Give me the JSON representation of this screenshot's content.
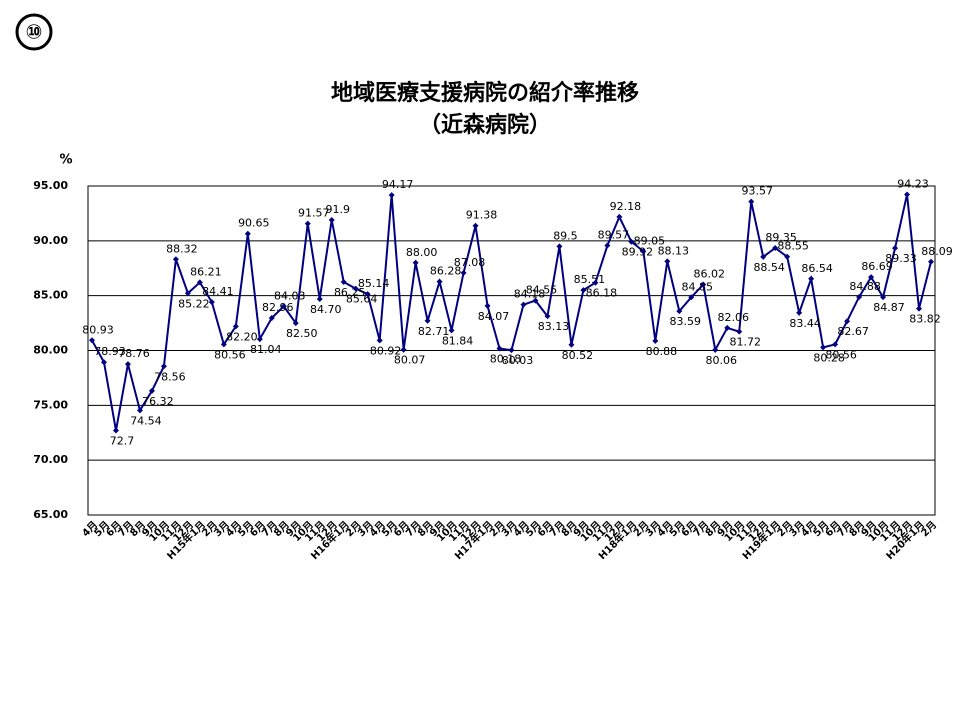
{
  "badge": "⑩",
  "chart_data": {
    "type": "line",
    "title": "地域医療支援病院の紹介率推移",
    "subtitle": "（近森病院）",
    "y_label": "%",
    "categories": [
      "4月",
      "5月",
      "6月",
      "7月",
      "8月",
      "9月",
      "10月",
      "11月",
      "12月",
      "H15年1月",
      "2月",
      "3月",
      "4月",
      "5月",
      "6月",
      "7月",
      "8月",
      "9月",
      "10月",
      "11月",
      "12月",
      "H16年1月",
      "2月",
      "3月",
      "4月",
      "5月",
      "6月",
      "7月",
      "8月",
      "9月",
      "10月",
      "11月",
      "12月",
      "H17年1月",
      "2月",
      "3月",
      "4月",
      "5月",
      "6月",
      "7月",
      "8月",
      "9月",
      "10月",
      "11月",
      "12月",
      "H18年1月",
      "2月",
      "3月",
      "4月",
      "5月",
      "6月",
      "7月",
      "8月",
      "9月",
      "10月",
      "11月",
      "12月",
      "H19年1月",
      "2月",
      "3月",
      "4月",
      "5月",
      "6月",
      "7月",
      "8月",
      "9月",
      "10月",
      "11月",
      "12月",
      "H20年1月",
      "2月"
    ],
    "series": [
      {
        "name": "紹介率",
        "color": "#000080",
        "values": [
          80.93,
          78.93,
          72.7,
          78.76,
          74.54,
          76.32,
          78.56,
          88.32,
          85.22,
          86.21,
          84.41,
          80.56,
          82.2,
          90.65,
          81.04,
          82.96,
          84.03,
          82.5,
          91.57,
          84.7,
          91.9,
          86.25,
          85.64,
          85.14,
          80.92,
          94.17,
          80.07,
          88,
          82.71,
          86.28,
          81.84,
          87.08,
          91.38,
          84.07,
          80.18,
          80.03,
          84.18,
          84.55,
          83.13,
          89.5,
          80.52,
          85.51,
          86.18,
          89.57,
          92.18,
          89.92,
          89.05,
          80.88,
          88.13,
          83.59,
          84.85,
          86.02,
          80.06,
          82.06,
          81.72,
          93.57,
          88.54,
          89.35,
          88.55,
          83.44,
          86.54,
          80.28,
          80.56,
          82.67,
          84.88,
          86.69,
          84.87,
          89.33,
          94.23,
          83.82,
          88.09
        ],
        "value_labels": [
          "80.93",
          "78.93",
          "72.7",
          "78.76",
          "74.54",
          "76.32",
          "78.56",
          "88.32",
          "85.22",
          "86.21",
          "84.41",
          "80.56",
          "82.20",
          "90.65",
          "81.04",
          "82.96",
          "84.03",
          "82.50",
          "91.57",
          "84.70",
          "91.9",
          "86.25",
          "85.64",
          "85.14",
          "80.92",
          "94.17",
          "80.07",
          "88.00",
          "82.71",
          "86.28",
          "81.84",
          "87.08",
          "91.38",
          "84.07",
          "80.18",
          "80.03",
          "84.18",
          "84.55",
          "83.13",
          "89.5",
          "80.52",
          "85.51",
          "86.18",
          "89.57",
          "92.18",
          "89.92",
          "89.05",
          "80.88",
          "88.13",
          "83.59",
          "84.85",
          "86.02",
          "80.06",
          "82.06",
          "81.72",
          "93.57",
          "88.54",
          "89.35",
          "88.55",
          "83.44",
          "86.54",
          "80.28",
          "80.56",
          "82.67",
          "84.88",
          "86.69",
          "84.87",
          "89.33",
          "94.23",
          "83.82",
          "88.09"
        ]
      }
    ],
    "ylim": [
      65,
      95
    ],
    "yticks": [
      {
        "value": 65,
        "label": "65.00"
      },
      {
        "value": 70,
        "label": "70.00"
      },
      {
        "value": 75,
        "label": "75.00"
      },
      {
        "value": 80,
        "label": "80.00"
      },
      {
        "value": 85,
        "label": "85.00"
      },
      {
        "value": 90,
        "label": "90.00"
      },
      {
        "value": 95,
        "label": "95.00"
      }
    ],
    "grid": true
  }
}
